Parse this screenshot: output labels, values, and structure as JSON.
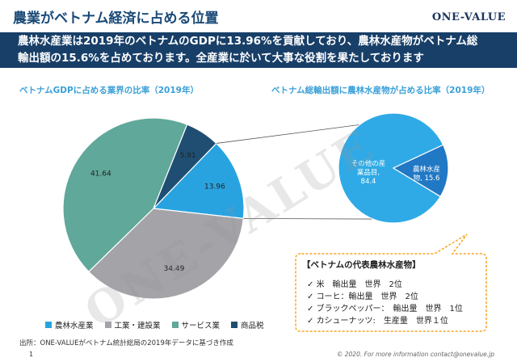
{
  "header": {
    "title": "農業がベトナム経済に占める位置",
    "logo": "ONE-VALUE"
  },
  "banner": {
    "line1": "農林水産業は2019年のベトナムのGDPに13.96%を貢献しており、農林水産物がベトナム総",
    "line2": "輸出額の15.6%を占めております。全産業に於いて大事な役割を果たしております"
  },
  "colors": {
    "agri": "#29a3e0",
    "industry": "#a3a3a8",
    "service": "#5fa89a",
    "tax": "#1f4e72",
    "other_export": "#2faae6",
    "agri_export": "#2178c4",
    "callout_border": "#f5a623"
  },
  "chart_data": [
    {
      "type": "pie",
      "title": "ベトナムGDPに占める業界の比率（2019年）",
      "labels": [
        "農林水産業",
        "工業・建設業",
        "サービス業",
        "商品税"
      ],
      "values": [
        13.96,
        34.49,
        41.64,
        5.91
      ],
      "data_labels": [
        "13.96",
        "34.49",
        "41.64",
        "5.91"
      ],
      "legend_position": "bottom"
    },
    {
      "type": "pie",
      "title": "ベトナム総輸出額に農林水産物が占める比率（2019年）",
      "labels": [
        "その他の産業品目",
        "農林水産物"
      ],
      "values": [
        84.4,
        15.6
      ],
      "data_labels": [
        "その他の産業品目,84.4",
        "農林水産物,15.6"
      ]
    }
  ],
  "callout": {
    "title": "【ベトナムの代表農林水産物】",
    "items": [
      "米　輸出量　世界　2位",
      "コーヒ：輸出量　世界　2位",
      "ブラックペッパー：　輸出量　世界　1位",
      "カシューナッツ:　生産量　世界１位"
    ]
  },
  "footer": {
    "source": "出所：ONE-VALUEがベトナム統計総局の2019年データに基づき作成",
    "page": "1",
    "copyright": "© 2020. For more information contact@onevalue.jp"
  },
  "watermark": "ONE-VALUE"
}
